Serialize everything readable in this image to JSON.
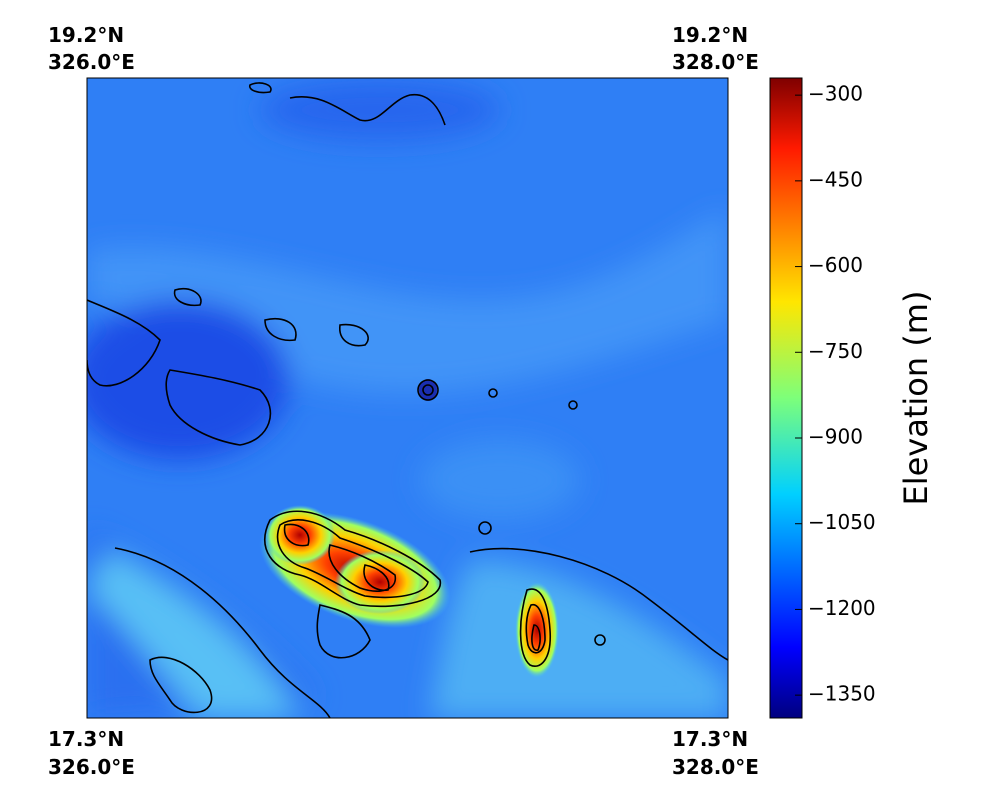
{
  "corners": {
    "top_left": {
      "lat": "19.2°N",
      "lon": "326.0°E"
    },
    "top_right": {
      "lat": "19.2°N",
      "lon": "328.0°E"
    },
    "bottom_left": {
      "lat": "17.3°N",
      "lon": "326.0°E"
    },
    "bottom_right": {
      "lat": "17.3°N",
      "lon": "328.0°E"
    }
  },
  "colorbar": {
    "label": "Elevation (m)",
    "lim": [
      -270,
      -1390
    ],
    "ticks": [
      {
        "value": -300,
        "label": "−300"
      },
      {
        "value": -450,
        "label": "−450"
      },
      {
        "value": -600,
        "label": "−600"
      },
      {
        "value": -750,
        "label": "−750"
      },
      {
        "value": -900,
        "label": "−900"
      },
      {
        "value": -1050,
        "label": "−1050"
      },
      {
        "value": -1200,
        "label": "−1200"
      },
      {
        "value": -1350,
        "label": "−1350"
      }
    ]
  }
}
